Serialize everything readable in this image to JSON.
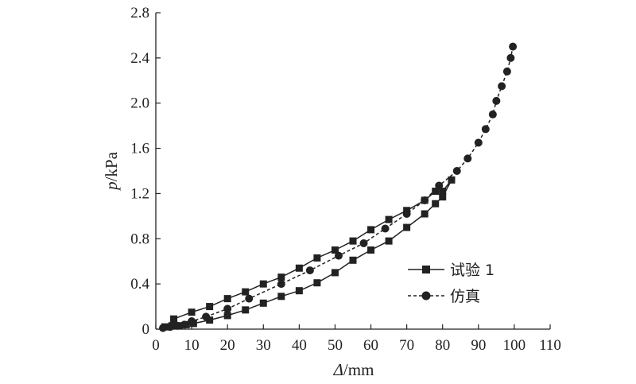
{
  "chart_data": {
    "type": "line",
    "xlabel_italic": "Δ",
    "xlabel_unit": "/mm",
    "ylabel_italic": "p",
    "ylabel_unit": "/kPa",
    "xlim": [
      0,
      110
    ],
    "ylim": [
      0,
      2.8
    ],
    "xticks": [
      "0",
      "10",
      "20",
      "30",
      "40",
      "50",
      "60",
      "70",
      "80",
      "90",
      "100",
      "110"
    ],
    "yticks": [
      "0",
      "0.4",
      "0.8",
      "1.2",
      "1.6",
      "2.0",
      "2.4",
      "2.8"
    ],
    "grid": false,
    "legend_placement": "lower-right",
    "series": [
      {
        "name": "试验 1",
        "marker": "square",
        "line_style": "solid",
        "color": "#222222",
        "points": [
          [
            2.5,
            0.02
          ],
          [
            4.5,
            0.03
          ],
          [
            6.5,
            0.03
          ],
          [
            8.5,
            0.04
          ],
          [
            10.5,
            0.05
          ],
          [
            15,
            0.08
          ],
          [
            20,
            0.12
          ],
          [
            25,
            0.17
          ],
          [
            30,
            0.23
          ],
          [
            35,
            0.29
          ],
          [
            40,
            0.34
          ],
          [
            45,
            0.41
          ],
          [
            50,
            0.5
          ],
          [
            55,
            0.61
          ],
          [
            60,
            0.7
          ],
          [
            65,
            0.78
          ],
          [
            70,
            0.9
          ],
          [
            75,
            1.02
          ],
          [
            78,
            1.11
          ],
          [
            80,
            1.17
          ],
          [
            82.5,
            1.32
          ],
          [
            80,
            1.22
          ],
          [
            78,
            1.22
          ],
          [
            75,
            1.14
          ],
          [
            70,
            1.05
          ],
          [
            65,
            0.97
          ],
          [
            60,
            0.88
          ],
          [
            55,
            0.78
          ],
          [
            50,
            0.7
          ],
          [
            45,
            0.63
          ],
          [
            40,
            0.54
          ],
          [
            35,
            0.46
          ],
          [
            30,
            0.4
          ],
          [
            25,
            0.33
          ],
          [
            20,
            0.27
          ],
          [
            15,
            0.2
          ],
          [
            10,
            0.15
          ],
          [
            5,
            0.09
          ]
        ]
      },
      {
        "name": "仿真",
        "marker": "circle",
        "line_style": "dashed",
        "color": "#222222",
        "points": [
          [
            2,
            0.01
          ],
          [
            4,
            0.02
          ],
          [
            6,
            0.03
          ],
          [
            8,
            0.04
          ],
          [
            10,
            0.07
          ],
          [
            14,
            0.11
          ],
          [
            20,
            0.18
          ],
          [
            26,
            0.27
          ],
          [
            35,
            0.4
          ],
          [
            43,
            0.52
          ],
          [
            51,
            0.65
          ],
          [
            58,
            0.76
          ],
          [
            64,
            0.89
          ],
          [
            70,
            1.02
          ],
          [
            75,
            1.14
          ],
          [
            79,
            1.27
          ],
          [
            84,
            1.4
          ],
          [
            87,
            1.51
          ],
          [
            90,
            1.65
          ],
          [
            92,
            1.77
          ],
          [
            94,
            1.9
          ],
          [
            95,
            2.02
          ],
          [
            96.5,
            2.15
          ],
          [
            98,
            2.28
          ],
          [
            99,
            2.4
          ],
          [
            99.6,
            2.5
          ]
        ]
      }
    ]
  }
}
